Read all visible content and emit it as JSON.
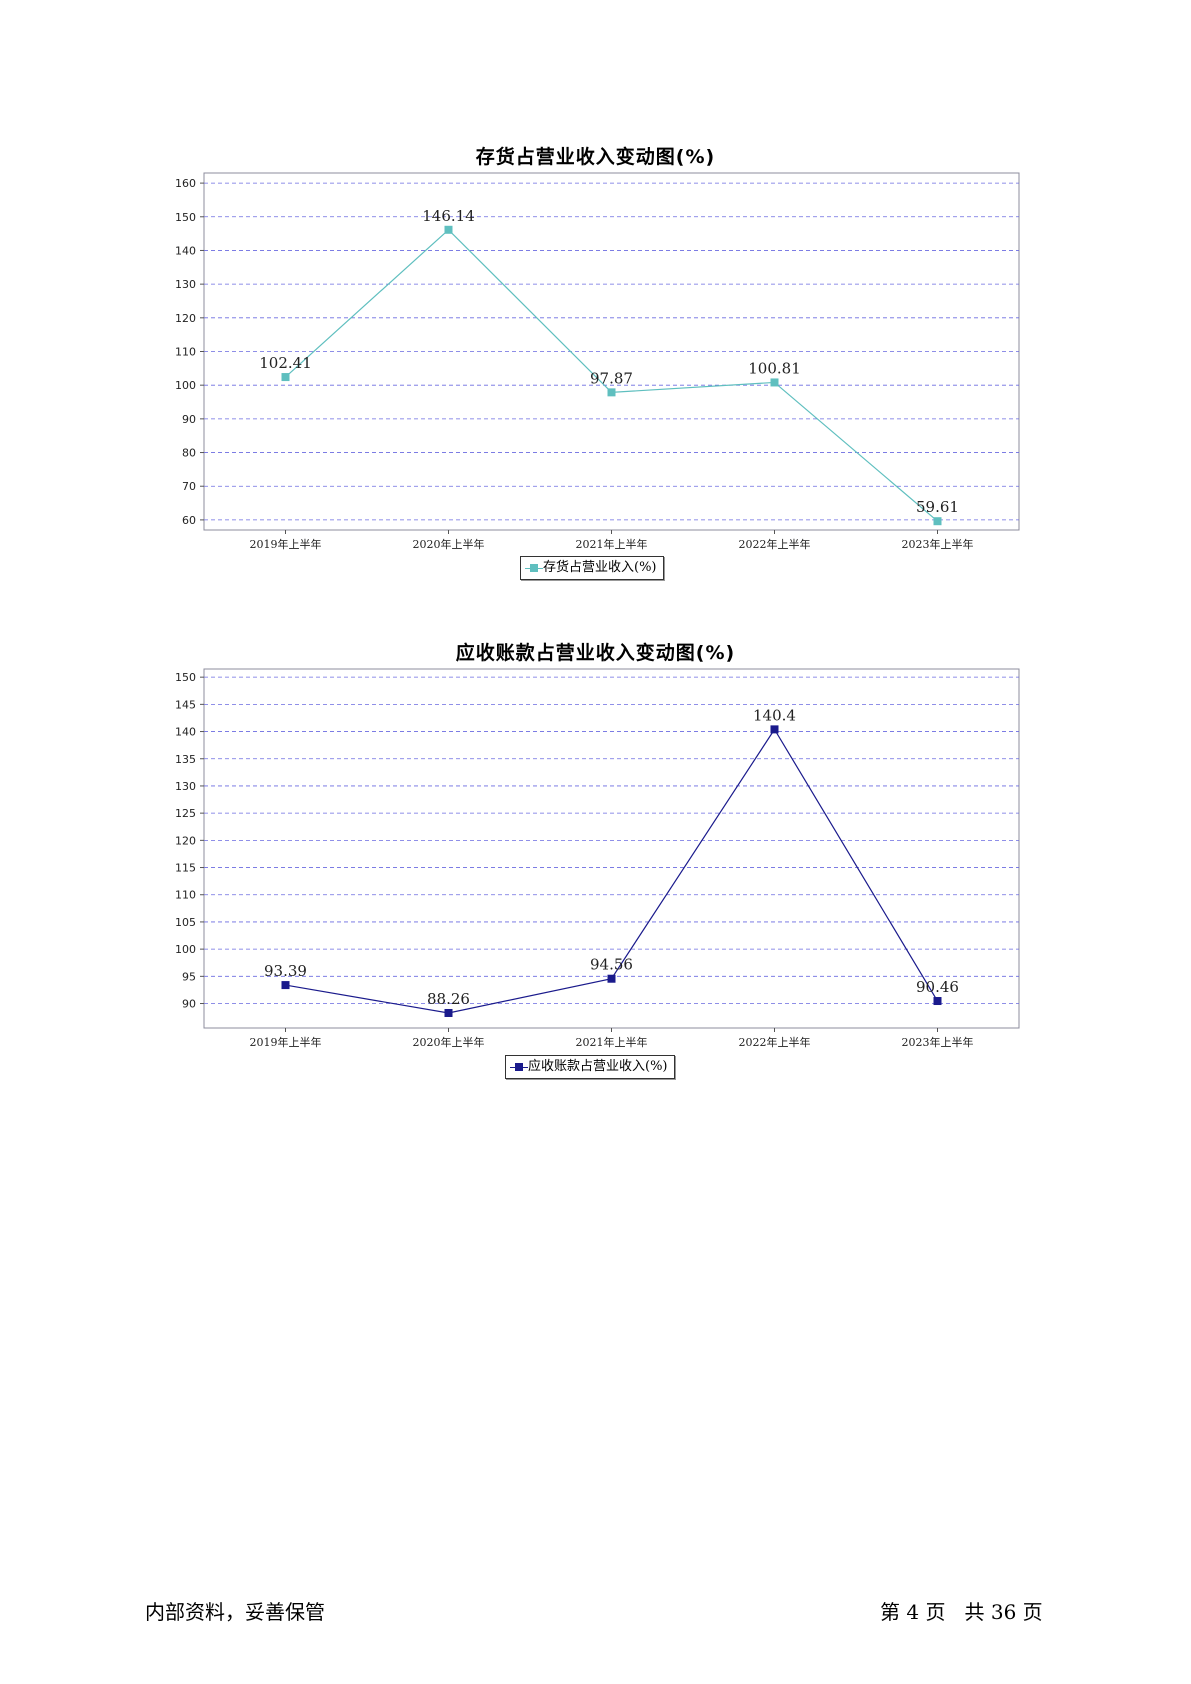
{
  "chart_data": [
    {
      "type": "line",
      "title": "存货占营业收入变动图(%)",
      "categories": [
        "2019年上半年",
        "2020年上半年",
        "2021年上半年",
        "2022年上半年",
        "2023年上半年"
      ],
      "series": [
        {
          "name": "存货占营业收入(%)",
          "values": [
            102.41,
            146.14,
            97.87,
            100.81,
            59.61
          ],
          "color": "#5fbfbf"
        }
      ],
      "value_labels": [
        "102.41",
        "146.14",
        "97.87",
        "100.81",
        "59.61"
      ],
      "ylim": [
        57,
        163
      ],
      "yticks": [
        "60",
        "70",
        "80",
        "90",
        "100",
        "110",
        "120",
        "130",
        "140",
        "150",
        "160"
      ],
      "ytick_values": [
        60,
        70,
        80,
        90,
        100,
        110,
        120,
        130,
        140,
        150,
        160
      ],
      "grid": true,
      "legend_position": "bottom-center"
    },
    {
      "type": "line",
      "title": "应收账款占营业收入变动图(%)",
      "categories": [
        "2019年上半年",
        "2020年上半年",
        "2021年上半年",
        "2022年上半年",
        "2023年上半年"
      ],
      "series": [
        {
          "name": "应收账款占营业收入(%)",
          "values": [
            93.39,
            88.26,
            94.56,
            140.4,
            90.46
          ],
          "color": "#1a1a8c"
        }
      ],
      "value_labels": [
        "93.39",
        "88.26",
        "94.56",
        "140.4",
        "90.46"
      ],
      "ylim": [
        85.5,
        151.5
      ],
      "yticks": [
        "90",
        "95",
        "100",
        "105",
        "110",
        "115",
        "120",
        "125",
        "130",
        "135",
        "140",
        "145",
        "150"
      ],
      "ytick_values": [
        90,
        95,
        100,
        105,
        110,
        115,
        120,
        125,
        130,
        135,
        140,
        145,
        150
      ],
      "grid": true,
      "legend_position": "bottom-center"
    }
  ],
  "footer": {
    "left": "内部资料，妥善保管",
    "page_info": "第 4 页   共 36 页"
  }
}
